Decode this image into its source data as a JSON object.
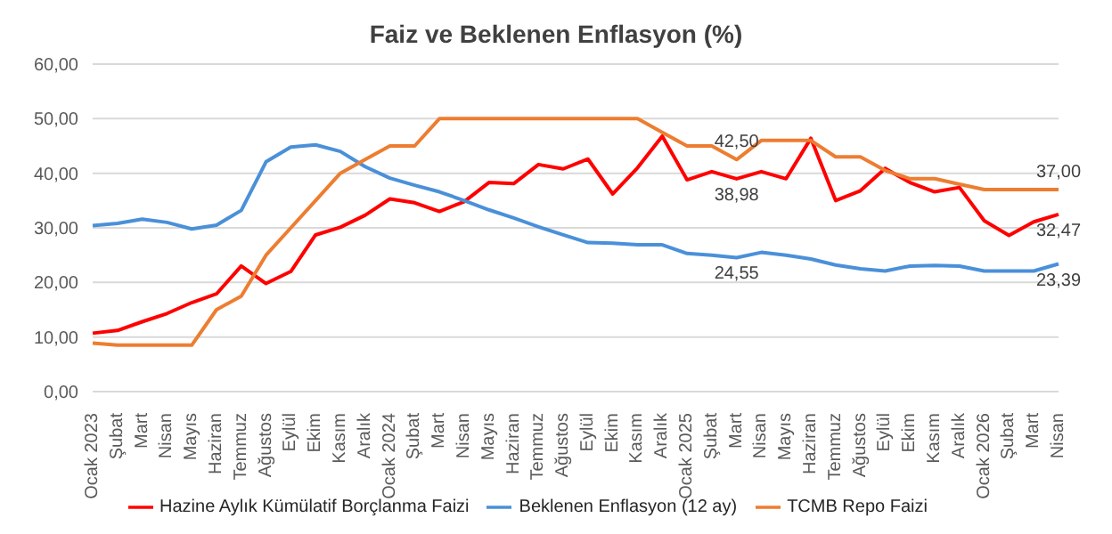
{
  "chart_data": {
    "type": "line",
    "title": "Faiz ve Beklenen Enflasyon (%)",
    "categories": [
      "Ocak 2023",
      "Şubat",
      "Mart",
      "Nisan",
      "Mayıs",
      "Haziran",
      "Temmuz",
      "Ağustos",
      "Eylül",
      "Ekim",
      "Kasım",
      "Aralık",
      "Ocak 2024",
      "Şubat",
      "Mart",
      "Nisan",
      "Mayıs",
      "Haziran",
      "Temmuz",
      "Ağustos",
      "Eylül",
      "Ekim",
      "Kasım",
      "Aralık",
      "Ocak 2025",
      "Şubat",
      "Mart",
      "Nisan",
      "Mayıs",
      "Haziran",
      "Temmuz",
      "Ağustos",
      "Eylül",
      "Ekim",
      "Kasım",
      "Aralık",
      "Ocak 2026",
      "Şubat",
      "Mart",
      "Nisan"
    ],
    "series": [
      {
        "name": "Hazine Aylık Kümülatif Borçlanma Faizi",
        "color": "#ff0000",
        "values": [
          10.7,
          11.2,
          12.8,
          14.3,
          16.3,
          17.9,
          23,
          19.8,
          22,
          28.7,
          30.1,
          32.3,
          35.3,
          34.6,
          33,
          34.8,
          38.3,
          38.1,
          41.6,
          40.8,
          42.6,
          36.2,
          41,
          46.8,
          38.8,
          40.3,
          38.98,
          40.3,
          39,
          46.4,
          35,
          36.8,
          40.9,
          38.3,
          36.6,
          37.4,
          31.3,
          28.6,
          31.1,
          32.47
        ],
        "value_labels": [
          null,
          null,
          null,
          null,
          null,
          null,
          null,
          null,
          null,
          null,
          null,
          null,
          null,
          null,
          null,
          null,
          null,
          null,
          null,
          null,
          null,
          null,
          null,
          null,
          null,
          null,
          "38,98",
          null,
          null,
          null,
          null,
          null,
          null,
          null,
          null,
          null,
          null,
          null,
          null,
          "32,47"
        ]
      },
      {
        "name": "Beklenen Enflasyon (12 ay)",
        "color": "#4a90d9",
        "values": [
          30.4,
          30.8,
          31.6,
          31,
          29.8,
          30.5,
          33.2,
          42.1,
          44.8,
          45.2,
          44,
          41.2,
          39.1,
          37.8,
          36.6,
          35,
          33.3,
          31.8,
          30.2,
          28.7,
          27.3,
          27.2,
          26.9,
          26.9,
          25.3,
          25,
          24.55,
          25.5,
          25,
          24.3,
          23.2,
          22.5,
          22.1,
          23,
          23.1,
          23,
          22.1,
          22.1,
          22.1,
          23.39
        ],
        "value_labels": [
          null,
          null,
          null,
          null,
          null,
          null,
          null,
          null,
          null,
          null,
          null,
          null,
          null,
          null,
          null,
          null,
          null,
          null,
          null,
          null,
          null,
          null,
          null,
          null,
          null,
          null,
          "24,55",
          null,
          null,
          null,
          null,
          null,
          null,
          null,
          null,
          null,
          null,
          null,
          null,
          "23,39"
        ]
      },
      {
        "name": "TCMB Repo Faizi",
        "color": "#ed7d31",
        "values": [
          8.9,
          8.5,
          8.5,
          8.5,
          8.5,
          15,
          17.5,
          25,
          30,
          35,
          40,
          42.5,
          45,
          45,
          50,
          50,
          50,
          50,
          50,
          50,
          50,
          50,
          50,
          47.5,
          45,
          45,
          42.5,
          46,
          46,
          46,
          43,
          43,
          40.5,
          39,
          39,
          38,
          37,
          37,
          37,
          37
        ],
        "value_labels": [
          null,
          null,
          null,
          null,
          null,
          null,
          null,
          null,
          null,
          null,
          null,
          null,
          null,
          null,
          null,
          null,
          null,
          null,
          null,
          null,
          null,
          null,
          null,
          null,
          null,
          null,
          "42,50",
          null,
          null,
          null,
          null,
          null,
          null,
          null,
          null,
          null,
          null,
          null,
          null,
          "37,00"
        ]
      }
    ],
    "ylim": [
      0,
      60
    ],
    "yticks": [
      {
        "value": 0,
        "label": "0,00"
      },
      {
        "value": 10,
        "label": "10,00"
      },
      {
        "value": 20,
        "label": "20,00"
      },
      {
        "value": 30,
        "label": "30,00"
      },
      {
        "value": 40,
        "label": "40,00"
      },
      {
        "value": 50,
        "label": "50,00"
      },
      {
        "value": 60,
        "label": "60,00"
      }
    ],
    "grid": "y",
    "legend": "bottom",
    "marker": "none",
    "line_style": "solid"
  }
}
